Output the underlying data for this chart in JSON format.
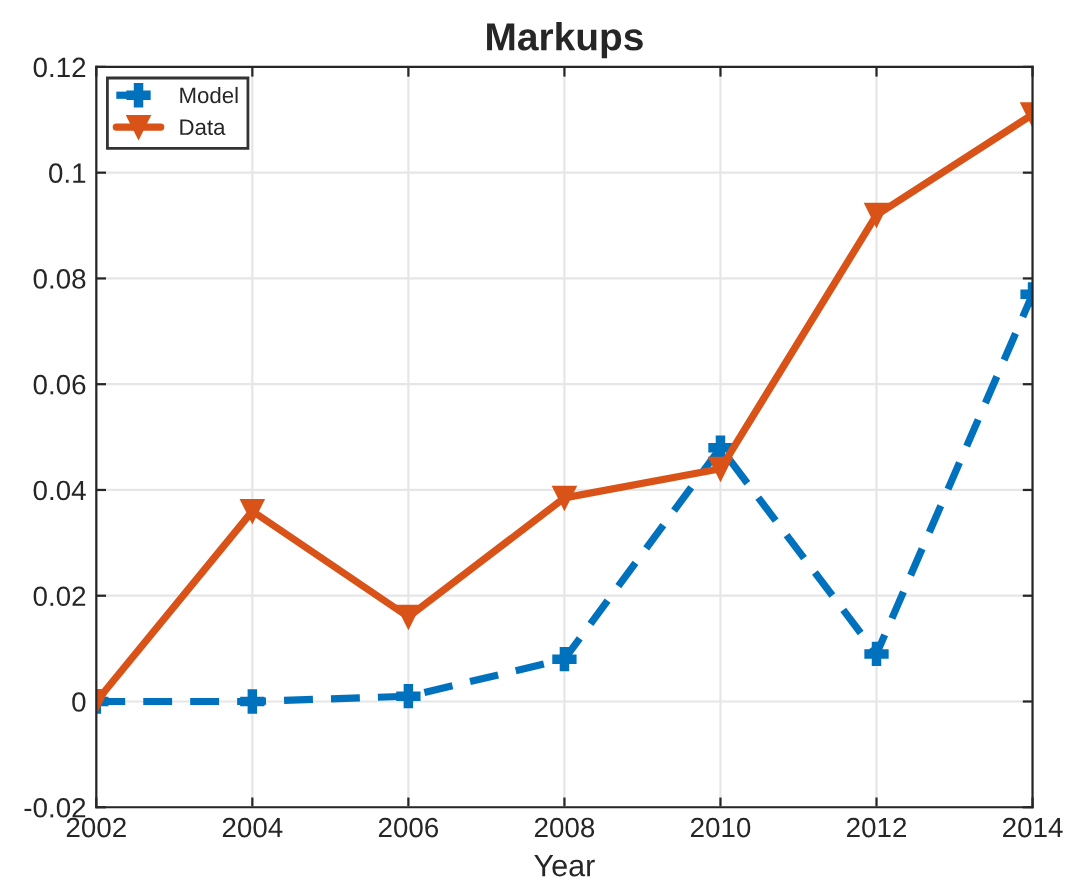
{
  "chart_data": {
    "type": "line",
    "title": "Markups",
    "xlabel": "Year",
    "x": [
      2002,
      2004,
      2006,
      2008,
      2010,
      2012,
      2014
    ],
    "series": [
      {
        "name": "Model",
        "color": "#0072bd",
        "line_style": "dashed",
        "marker": "cross",
        "values": [
          0,
          0,
          0.001,
          0.008,
          0.048,
          0.009,
          0.077
        ]
      },
      {
        "name": "Data",
        "color": "#d95319",
        "line_style": "solid",
        "marker": "triangle",
        "values": [
          0,
          0.036,
          0.016,
          0.0385,
          0.044,
          0.092,
          0.111
        ]
      }
    ],
    "xlim": [
      2002,
      2014
    ],
    "xticks": [
      2002,
      2004,
      2006,
      2008,
      2010,
      2012,
      2014
    ],
    "ylim": [
      -0.02,
      0.12
    ],
    "yticks": [
      {
        "value": -0.02,
        "label": "-0.02"
      },
      0,
      0.02,
      0.04,
      0.06,
      0.08,
      {
        "value": 0.1,
        "label": "0.1"
      },
      0.12
    ],
    "grid": true,
    "legend": "top left"
  }
}
